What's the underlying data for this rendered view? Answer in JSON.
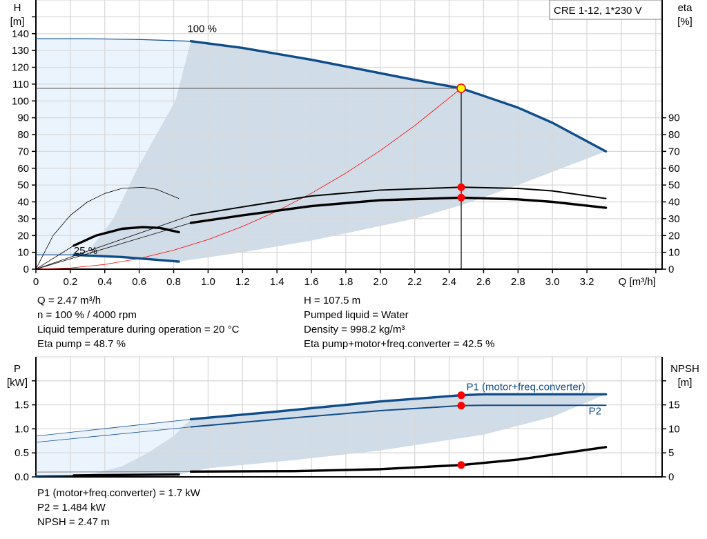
{
  "title_box": "CRE 1-12, 1*230 V",
  "colors": {
    "curve_blue": "#0f4c8a",
    "light_area": "#ebf4fd",
    "dark_area": "#d0dce7",
    "grid": "#d9d9d9",
    "system_curve": "#ff0000",
    "point": "#ff0000",
    "duty_point_fill": "#ffff00"
  },
  "chart_data": [
    {
      "type": "line",
      "id": "head_eta",
      "y_left_label": [
        "H",
        "[m]"
      ],
      "y_right_label": [
        "eta",
        "[%]"
      ],
      "x_label": "Q [m³/h]",
      "xlim": [
        0,
        3.6
      ],
      "ylim_left": [
        0,
        160
      ],
      "ylim_right": [
        0,
        160
      ],
      "grid": true,
      "x_ticks": [
        "0",
        "0.2",
        "0.4",
        "0.6",
        "0.8",
        "1.0",
        "1.2",
        "1.4",
        "1.6",
        "1.8",
        "2.0",
        "2.2",
        "2.4",
        "2.6",
        "2.8",
        "3.0",
        "3.2"
      ],
      "y_left_ticks": [
        "0",
        "10",
        "20",
        "30",
        "40",
        "50",
        "60",
        "70",
        "80",
        "90",
        "100",
        "110",
        "120",
        "130",
        "140"
      ],
      "y_right_ticks": [
        "0",
        "10",
        "20",
        "30",
        "40",
        "50",
        "60",
        "70",
        "80",
        "90"
      ],
      "labels": [
        {
          "text": "100 %",
          "q": 0.88,
          "h": 141
        },
        {
          "text": "25 %",
          "q": 0.22,
          "h": 9
        }
      ],
      "areas": [
        {
          "name": "operating-range-light",
          "color": "#ebf4fd",
          "points": [
            [
              0,
              137
            ],
            [
              0.3,
              137
            ],
            [
              0.6,
              136.5
            ],
            [
              0.9,
              135.5
            ],
            [
              0.83,
              4.5
            ],
            [
              0.5,
              7.2
            ],
            [
              0.22,
              8.5
            ],
            [
              0,
              8.5
            ]
          ]
        },
        {
          "name": "operating-range",
          "color": "#d0dce7",
          "points": [
            [
              0.33,
              14
            ],
            [
              0.45,
              30
            ],
            [
              0.59,
              60
            ],
            [
              0.7,
              80
            ],
            [
              0.81,
              100
            ],
            [
              0.9,
              135.5
            ],
            [
              1.2,
              131.5
            ],
            [
              1.6,
              124.5
            ],
            [
              2.0,
              116.5
            ],
            [
              2.2,
              112.5
            ],
            [
              2.47,
              107.5
            ],
            [
              2.6,
              103
            ],
            [
              2.8,
              96
            ],
            [
              3.0,
              87
            ],
            [
              3.31,
              70
            ],
            [
              2.8,
              50
            ],
            [
              2.47,
              38
            ],
            [
              2.2,
              30
            ],
            [
              1.6,
              17
            ],
            [
              1.2,
              10
            ],
            [
              0.83,
              4.5
            ],
            [
              0.5,
              7.2
            ],
            [
              0.33,
              8
            ]
          ]
        }
      ],
      "series": [
        {
          "id": "system-curve",
          "color": "#ff0000",
          "weight": "hair",
          "points": [
            [
              0,
              0
            ],
            [
              0.2,
              0.7
            ],
            [
              0.4,
              2.8
            ],
            [
              0.6,
              6.3
            ],
            [
              0.8,
              11.3
            ],
            [
              1.0,
              17.6
            ],
            [
              1.2,
              25.4
            ],
            [
              1.4,
              34.5
            ],
            [
              1.6,
              45.1
            ],
            [
              1.8,
              57.1
            ],
            [
              2.0,
              70.5
            ],
            [
              2.2,
              85.3
            ],
            [
              2.47,
              107.5
            ]
          ]
        },
        {
          "id": "head-100-ext",
          "color": "#0f4c8a",
          "weight": "thin",
          "points": [
            [
              0,
              137
            ],
            [
              0.3,
              137
            ],
            [
              0.6,
              136.5
            ],
            [
              0.9,
              135.5
            ]
          ]
        },
        {
          "id": "head-100",
          "color": "#0f4c8a",
          "weight": "thick",
          "points": [
            [
              0.9,
              135.5
            ],
            [
              1.2,
              131.5
            ],
            [
              1.6,
              124.5
            ],
            [
              2.0,
              116.5
            ],
            [
              2.2,
              112.5
            ],
            [
              2.47,
              107.5
            ],
            [
              2.6,
              103
            ],
            [
              2.8,
              96
            ],
            [
              3.0,
              87
            ],
            [
              3.31,
              70
            ]
          ]
        },
        {
          "id": "head-25-ext",
          "color": "#0f4c8a",
          "weight": "thin",
          "points": [
            [
              0,
              8.5
            ],
            [
              0.22,
              8.5
            ]
          ]
        },
        {
          "id": "head-25",
          "color": "#0f4c8a",
          "weight": "thick",
          "points": [
            [
              0.22,
              8.5
            ],
            [
              0.5,
              7.2
            ],
            [
              0.83,
              4.5
            ]
          ]
        },
        {
          "id": "eta-pump-100-ext",
          "color": "#000000",
          "weight": "hair",
          "points": [
            [
              0,
              0
            ],
            [
              0.9,
              32
            ]
          ]
        },
        {
          "id": "eta-pump-100",
          "color": "#000000",
          "weight": "medium",
          "points": [
            [
              0.9,
              32
            ],
            [
              1.2,
              37
            ],
            [
              1.6,
              43.5
            ],
            [
              2.0,
              47
            ],
            [
              2.47,
              48.7
            ],
            [
              2.8,
              48
            ],
            [
              3.0,
              46.5
            ],
            [
              3.31,
              42
            ]
          ]
        },
        {
          "id": "eta-total-100-ext",
          "color": "#000000",
          "weight": "hair",
          "points": [
            [
              0,
              0
            ],
            [
              0.9,
              27.5
            ]
          ]
        },
        {
          "id": "eta-total-100",
          "color": "#000000",
          "weight": "thick",
          "points": [
            [
              0.9,
              27.5
            ],
            [
              1.2,
              32
            ],
            [
              1.6,
              37.5
            ],
            [
              2.0,
              41
            ],
            [
              2.47,
              42.5
            ],
            [
              2.8,
              41.5
            ],
            [
              3.0,
              40
            ],
            [
              3.31,
              36.5
            ]
          ]
        },
        {
          "id": "eta-pump-25",
          "color": "#000000",
          "weight": "hair",
          "points": [
            [
              0,
              0
            ],
            [
              0.1,
              20
            ],
            [
              0.2,
              32
            ],
            [
              0.3,
              40
            ],
            [
              0.4,
              45
            ],
            [
              0.5,
              48
            ],
            [
              0.62,
              48.7
            ],
            [
              0.7,
              47.5
            ],
            [
              0.83,
              42
            ]
          ]
        },
        {
          "id": "eta-total-25-ext",
          "color": "#000000",
          "weight": "hair",
          "points": [
            [
              0,
              0
            ],
            [
              0.22,
              14
            ]
          ]
        },
        {
          "id": "eta-total-25",
          "color": "#000000",
          "weight": "thick",
          "points": [
            [
              0.22,
              14
            ],
            [
              0.35,
              20
            ],
            [
              0.5,
              24
            ],
            [
              0.62,
              25
            ],
            [
              0.72,
              24.5
            ],
            [
              0.83,
              22
            ]
          ]
        }
      ],
      "duty_point": {
        "q": 2.47,
        "h": 107.5
      },
      "markers": [
        {
          "q": 2.47,
          "v": 48.7
        },
        {
          "q": 2.47,
          "v": 42.5
        }
      ]
    },
    {
      "type": "line",
      "id": "power_npsh",
      "y_left_label": [
        "P",
        "[kW]"
      ],
      "y_right_label": [
        "NPSH",
        "[m]"
      ],
      "xlim": [
        0,
        3.6
      ],
      "ylim_left": [
        0,
        2.5
      ],
      "ylim_right": [
        0,
        25
      ],
      "grid": true,
      "y_left_ticks": [
        "0.0",
        "0.5",
        "1.0",
        "1.5"
      ],
      "y_right_ticks": [
        "0",
        "5",
        "10",
        "15"
      ],
      "labels": [
        {
          "text": "P1 (motor+freq.converter)",
          "q": 2.5,
          "p": 1.8,
          "color": "#0f4c8a"
        },
        {
          "text": "P2",
          "q": 3.21,
          "p": 1.3,
          "color": "#0f4c8a"
        }
      ],
      "areas": [
        {
          "name": "power-range-light",
          "color": "#ebf4fd",
          "points": [
            [
              0,
              0.85
            ],
            [
              0.9,
              1.2
            ],
            [
              0.83,
              0.05
            ],
            [
              0,
              0.02
            ]
          ]
        },
        {
          "name": "power-range",
          "color": "#d0dce7",
          "points": [
            [
              0.3,
              0.04
            ],
            [
              0.5,
              0.22
            ],
            [
              0.65,
              0.5
            ],
            [
              0.8,
              0.85
            ],
            [
              0.9,
              1.2
            ],
            [
              1.4,
              1.36
            ],
            [
              2.0,
              1.57
            ],
            [
              2.47,
              1.7
            ],
            [
              2.6,
              1.72
            ],
            [
              3.31,
              1.72
            ],
            [
              3.0,
              1.25
            ],
            [
              2.6,
              0.88
            ],
            [
              2.0,
              0.55
            ],
            [
              1.5,
              0.35
            ],
            [
              1.0,
              0.18
            ],
            [
              0.83,
              0.05
            ]
          ]
        }
      ],
      "series": [
        {
          "id": "p1-ext",
          "color": "#0f4c8a",
          "weight": "hair",
          "points": [
            [
              0,
              0.85
            ],
            [
              0.9,
              1.2
            ]
          ]
        },
        {
          "id": "p1",
          "color": "#0f4c8a",
          "weight": "thick",
          "points": [
            [
              0.9,
              1.2
            ],
            [
              1.4,
              1.36
            ],
            [
              2.0,
              1.57
            ],
            [
              2.47,
              1.7
            ],
            [
              2.6,
              1.72
            ],
            [
              3.31,
              1.72
            ]
          ]
        },
        {
          "id": "p2-ext",
          "color": "#0f4c8a",
          "weight": "hair",
          "points": [
            [
              0,
              0.72
            ],
            [
              0.9,
              1.04
            ]
          ]
        },
        {
          "id": "p2",
          "color": "#0f4c8a",
          "weight": "medium",
          "points": [
            [
              0.9,
              1.04
            ],
            [
              1.5,
              1.23
            ],
            [
              2.0,
              1.38
            ],
            [
              2.47,
              1.484
            ],
            [
              2.6,
              1.49
            ],
            [
              3.31,
              1.49
            ]
          ]
        },
        {
          "id": "npsh-ext",
          "color": "#888888",
          "weight": "thin",
          "axis": "right",
          "points": [
            [
              0,
              1.0
            ],
            [
              0.9,
              1.1
            ]
          ]
        },
        {
          "id": "npsh",
          "color": "#000000",
          "weight": "thick",
          "axis": "right",
          "points": [
            [
              0.9,
              1.1
            ],
            [
              1.5,
              1.2
            ],
            [
              2.0,
              1.6
            ],
            [
              2.47,
              2.47
            ],
            [
              2.8,
              3.6
            ],
            [
              3.31,
              6.2
            ]
          ]
        },
        {
          "id": "p-25",
          "color": "#0f4c8a",
          "weight": "medium",
          "points": [
            [
              0,
              0.02
            ],
            [
              0.83,
              0.05
            ]
          ]
        },
        {
          "id": "npsh-25",
          "color": "#000000",
          "weight": "thick",
          "axis": "right",
          "points": [
            [
              0.22,
              0.3
            ],
            [
              0.83,
              0.5
            ]
          ]
        }
      ],
      "markers": [
        {
          "q": 2.47,
          "v": 1.7
        },
        {
          "q": 2.47,
          "v": 1.484
        },
        {
          "q": 2.47,
          "v": 2.47,
          "axis": "right"
        }
      ]
    }
  ],
  "info_top_left": [
    "Q = 2.47 m³/h",
    "n = 100 % / 4000 rpm",
    "Liquid temperature during operation = 20 °C",
    "Eta pump = 48.7 %"
  ],
  "info_top_right": [
    "H = 107.5 m",
    "Pumped liquid = Water",
    "Density = 998.2 kg/m³",
    "Eta pump+motor+freq.converter = 42.5 %"
  ],
  "info_bottom": [
    "P1 (motor+freq.converter) = 1.7 kW",
    "P2 = 1.484 kW",
    "NPSH = 2.47 m"
  ]
}
